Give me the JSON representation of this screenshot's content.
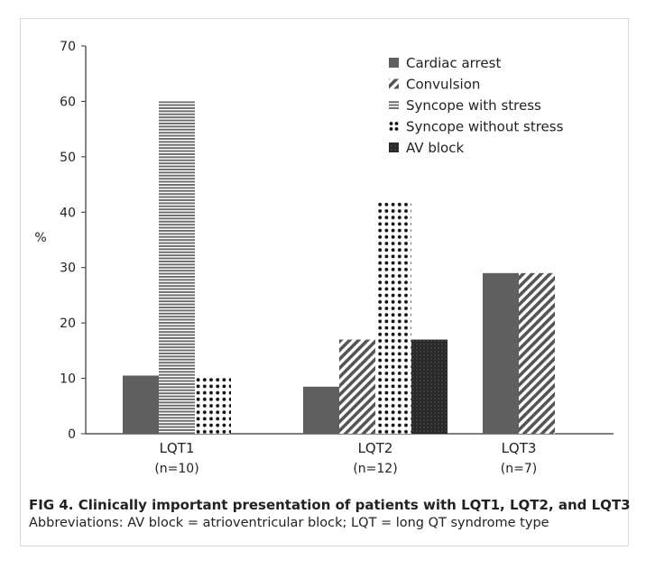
{
  "chart_data": {
    "type": "bar",
    "ylabel": "%",
    "ylim": [
      0,
      70
    ],
    "yticks": [
      0,
      10,
      20,
      30,
      40,
      50,
      60,
      70
    ],
    "grid": false,
    "legend_position": "top-right",
    "categories": [
      {
        "label": "LQT1",
        "sublabel": "(n=10)"
      },
      {
        "label": "LQT2",
        "sublabel": "(n=12)"
      },
      {
        "label": "LQT3",
        "sublabel": "(n=7)"
      }
    ],
    "series": [
      {
        "name": "Cardiac arrest",
        "pattern": "solid",
        "color": "#5f5f5f",
        "values": [
          10.5,
          8.5,
          29
        ]
      },
      {
        "name": "Convulsion",
        "pattern": "diagonal",
        "color": "#555555",
        "values": [
          null,
          17,
          29
        ]
      },
      {
        "name": "Syncope with stress",
        "pattern": "horizontal",
        "color": "#6a6a6a",
        "values": [
          60,
          null,
          null
        ]
      },
      {
        "name": "Syncope without stress",
        "pattern": "dots",
        "color": "#111111",
        "values": [
          10.5,
          42,
          null
        ]
      },
      {
        "name": "AV block",
        "pattern": "dark",
        "color": "#2a2a2a",
        "values": [
          null,
          17,
          null
        ]
      }
    ],
    "bars_per_category": [
      [
        "Cardiac arrest",
        "Syncope with stress",
        "Syncope without stress"
      ],
      [
        "Cardiac arrest",
        "Convulsion",
        "Syncope without stress",
        "AV block"
      ],
      [
        "Cardiac arrest",
        "Convulsion"
      ]
    ]
  },
  "caption": {
    "title": "FIG 4.  Clinically important presentation of patients with LQT1, LQT2, and LQT3",
    "abbreviations": "Abbreviations: AV block = atrioventricular block; LQT = long QT syndrome type"
  }
}
